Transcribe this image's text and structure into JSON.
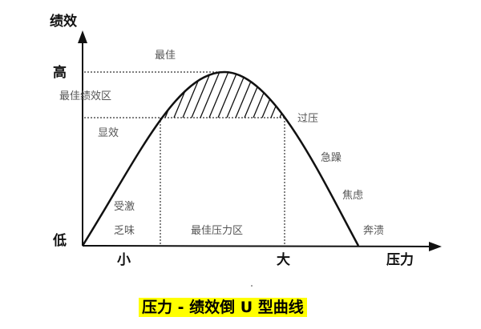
{
  "y_axis": {
    "title": "绩效",
    "high": "高",
    "low": "低"
  },
  "x_axis": {
    "title": "压力",
    "small": "小",
    "large": "大"
  },
  "regions": {
    "best": "最佳",
    "best_performance_zone": "最佳绩效区",
    "noticeable": "显效",
    "overstress": "过压",
    "irritable": "急躁",
    "anxious": "焦虑",
    "collapse": "奔溃",
    "stimulated": "受激",
    "boring": "乏味",
    "best_stress_zone": "最佳压力区"
  },
  "caption": "压力 - 绩效倒 U 型曲线",
  "colors": {
    "caption_highlight": "#ffff00",
    "line": "#111111",
    "label": "#555555"
  }
}
